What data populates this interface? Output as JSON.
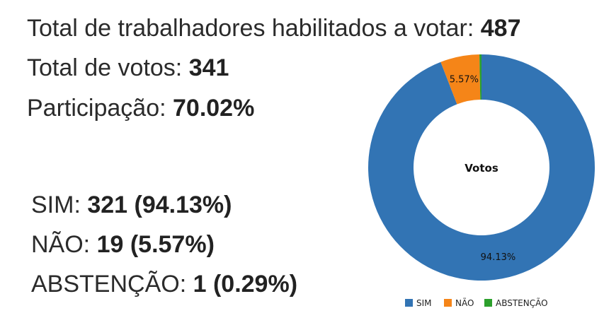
{
  "stats": {
    "eligible_label": "Total de trabalhadores habilitados a votar: ",
    "eligible_value": "487",
    "votes_label": "Total de votos: ",
    "votes_value": "341",
    "participation_label": "Participação: ",
    "participation_value": "70.02%"
  },
  "results": [
    {
      "label": "SIM: ",
      "value": "321 (94.13%)"
    },
    {
      "label": "NÃO: ",
      "value": "19 (5.57%)"
    },
    {
      "label": "ABSTENÇÃO: ",
      "value": "1 (0.29%)"
    }
  ],
  "chart_data": {
    "type": "pie",
    "donut": true,
    "center_label": "Votos",
    "categories": [
      "SIM",
      "NÃO",
      "ABSTENÇÃO"
    ],
    "values": [
      321,
      19,
      1
    ],
    "slice_labels": [
      "94.13%",
      "5.57%",
      ""
    ],
    "colors": [
      "#3274b4",
      "#f58518",
      "#2ca02c"
    ],
    "legend_position": "bottom"
  }
}
